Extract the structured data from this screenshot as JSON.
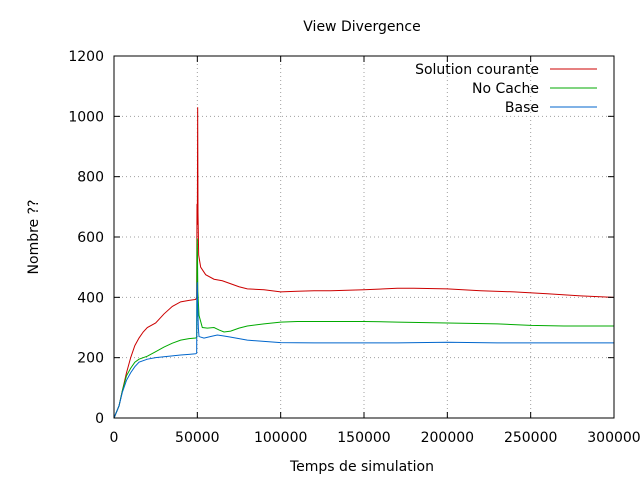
{
  "chart_data": {
    "type": "line",
    "title": "View Divergence",
    "xlabel": "Temps de simulation",
    "ylabel": "Nombre ??",
    "xlim": [
      0,
      300000
    ],
    "ylim": [
      0,
      1200
    ],
    "xticks": [
      0,
      50000,
      100000,
      150000,
      200000,
      250000,
      300000
    ],
    "yticks": [
      0,
      200,
      400,
      600,
      800,
      1000,
      1200
    ],
    "xtick_labels": [
      "0",
      "50000",
      "100000",
      "150000",
      "200000",
      "250000",
      "300000"
    ],
    "ytick_labels": [
      "0",
      "200",
      "400",
      "600",
      "800",
      "1000",
      "1200"
    ],
    "grid": true,
    "legend_position": "top-right",
    "series": [
      {
        "name": "Solution courante",
        "color": "#cc0000",
        "points": [
          [
            0,
            0
          ],
          [
            3000,
            40
          ],
          [
            5000,
            90
          ],
          [
            7500,
            150
          ],
          [
            10000,
            200
          ],
          [
            12500,
            240
          ],
          [
            15000,
            265
          ],
          [
            17500,
            285
          ],
          [
            20000,
            300
          ],
          [
            25000,
            315
          ],
          [
            30000,
            345
          ],
          [
            35000,
            370
          ],
          [
            40000,
            385
          ],
          [
            45000,
            390
          ],
          [
            49000,
            393
          ],
          [
            49600,
            400
          ],
          [
            49800,
            710
          ],
          [
            50000,
            640
          ],
          [
            50200,
            1030
          ],
          [
            50400,
            680
          ],
          [
            50800,
            540
          ],
          [
            52000,
            500
          ],
          [
            55000,
            475
          ],
          [
            60000,
            460
          ],
          [
            65000,
            455
          ],
          [
            70000,
            445
          ],
          [
            75000,
            435
          ],
          [
            80000,
            428
          ],
          [
            90000,
            425
          ],
          [
            100000,
            418
          ],
          [
            110000,
            420
          ],
          [
            120000,
            422
          ],
          [
            130000,
            422
          ],
          [
            150000,
            425
          ],
          [
            170000,
            430
          ],
          [
            180000,
            430
          ],
          [
            200000,
            428
          ],
          [
            220000,
            422
          ],
          [
            240000,
            418
          ],
          [
            260000,
            412
          ],
          [
            280000,
            405
          ],
          [
            300000,
            400
          ]
        ]
      },
      {
        "name": "No Cache",
        "color": "#00aa00",
        "points": [
          [
            0,
            0
          ],
          [
            3000,
            40
          ],
          [
            5000,
            90
          ],
          [
            7500,
            140
          ],
          [
            10000,
            165
          ],
          [
            12500,
            185
          ],
          [
            15000,
            195
          ],
          [
            20000,
            205
          ],
          [
            25000,
            220
          ],
          [
            30000,
            235
          ],
          [
            35000,
            248
          ],
          [
            40000,
            258
          ],
          [
            45000,
            263
          ],
          [
            49000,
            265
          ],
          [
            49600,
            268
          ],
          [
            49800,
            545
          ],
          [
            50000,
            595
          ],
          [
            50300,
            420
          ],
          [
            51000,
            340
          ],
          [
            53000,
            300
          ],
          [
            56000,
            298
          ],
          [
            60000,
            300
          ],
          [
            63000,
            292
          ],
          [
            66000,
            285
          ],
          [
            70000,
            288
          ],
          [
            75000,
            298
          ],
          [
            80000,
            305
          ],
          [
            90000,
            312
          ],
          [
            100000,
            318
          ],
          [
            110000,
            320
          ],
          [
            130000,
            320
          ],
          [
            150000,
            320
          ],
          [
            170000,
            318
          ],
          [
            200000,
            315
          ],
          [
            230000,
            312
          ],
          [
            250000,
            307
          ],
          [
            270000,
            305
          ],
          [
            300000,
            305
          ]
        ]
      },
      {
        "name": "Base",
        "color": "#0066cc",
        "points": [
          [
            0,
            0
          ],
          [
            3000,
            40
          ],
          [
            5000,
            85
          ],
          [
            7500,
            125
          ],
          [
            10000,
            150
          ],
          [
            12500,
            170
          ],
          [
            15000,
            185
          ],
          [
            20000,
            195
          ],
          [
            25000,
            200
          ],
          [
            30000,
            203
          ],
          [
            35000,
            206
          ],
          [
            40000,
            209
          ],
          [
            45000,
            211
          ],
          [
            49000,
            213
          ],
          [
            49600,
            215
          ],
          [
            49800,
            430
          ],
          [
            50000,
            450
          ],
          [
            50200,
            380
          ],
          [
            50600,
            300
          ],
          [
            51000,
            270
          ],
          [
            54000,
            265
          ],
          [
            58000,
            270
          ],
          [
            62000,
            275
          ],
          [
            66000,
            272
          ],
          [
            70000,
            268
          ],
          [
            75000,
            263
          ],
          [
            80000,
            258
          ],
          [
            90000,
            254
          ],
          [
            100000,
            250
          ],
          [
            120000,
            249
          ],
          [
            150000,
            249
          ],
          [
            170000,
            249
          ],
          [
            200000,
            251
          ],
          [
            230000,
            249
          ],
          [
            260000,
            249
          ],
          [
            300000,
            249
          ]
        ]
      }
    ]
  }
}
